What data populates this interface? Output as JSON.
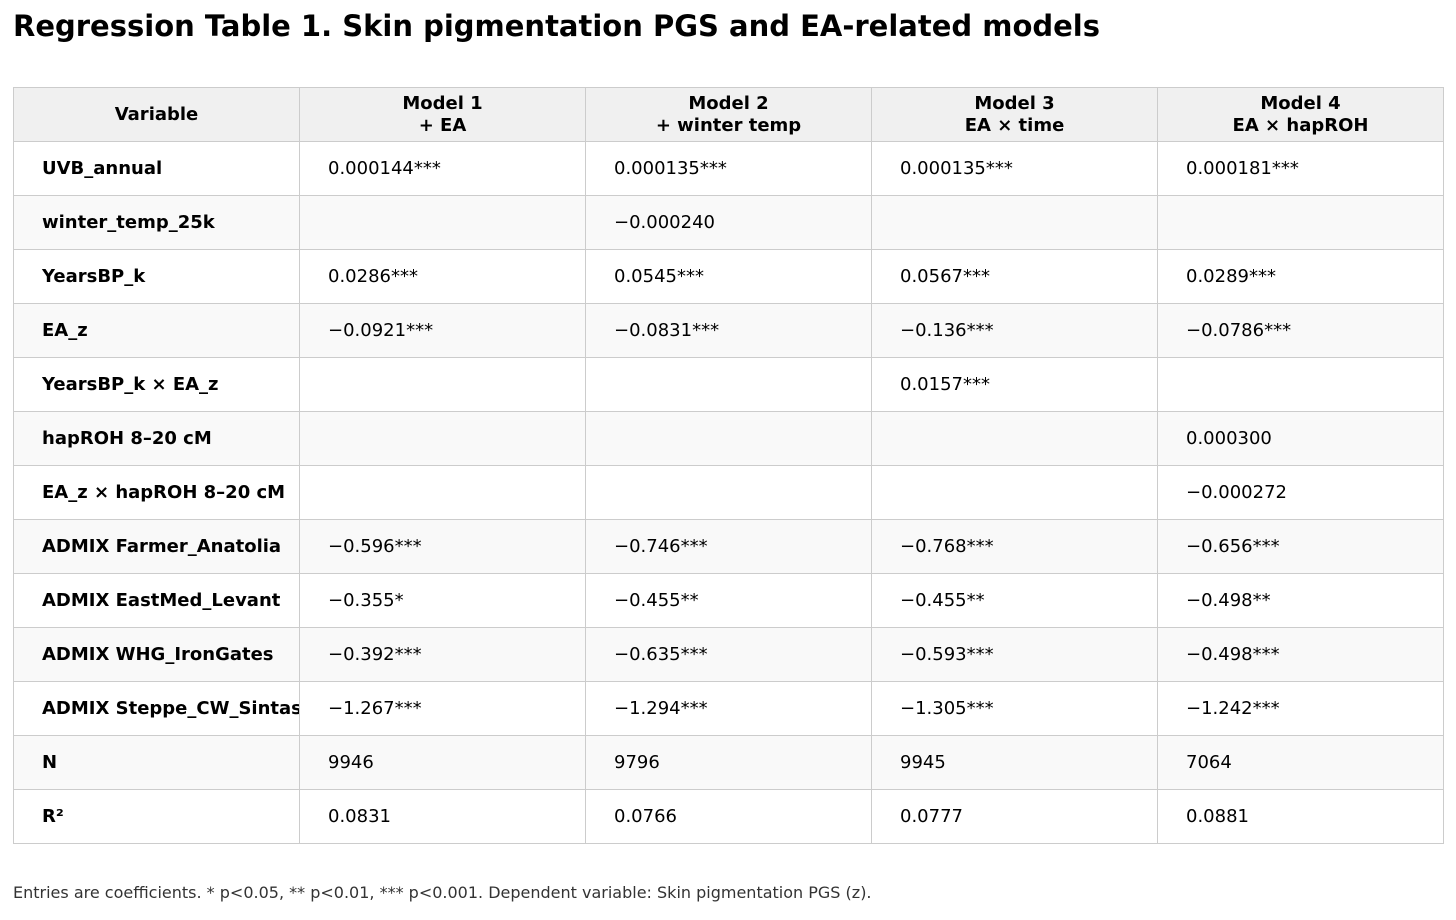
{
  "title": "Regression Table 1. Skin pigmentation PGS and EA-related models",
  "table": {
    "headers": [
      {
        "line1": "Variable",
        "line2": ""
      },
      {
        "line1": "Model 1",
        "line2": "+ EA"
      },
      {
        "line1": "Model 2",
        "line2": "+ winter temp"
      },
      {
        "line1": "Model 3",
        "line2": "EA × time"
      },
      {
        "line1": "Model 4",
        "line2": "EA × hapROH"
      }
    ],
    "rows": [
      {
        "variable": "UVB_annual",
        "m1": "0.000144***",
        "m2": "0.000135***",
        "m3": "0.000135***",
        "m4": "0.000181***"
      },
      {
        "variable": "winter_temp_25k",
        "m1": "",
        "m2": "−0.000240",
        "m3": "",
        "m4": ""
      },
      {
        "variable": "YearsBP_k",
        "m1": "0.0286***",
        "m2": "0.0545***",
        "m3": "0.0567***",
        "m4": "0.0289***"
      },
      {
        "variable": "EA_z",
        "m1": "−0.0921***",
        "m2": "−0.0831***",
        "m3": "−0.136***",
        "m4": "−0.0786***"
      },
      {
        "variable": "YearsBP_k × EA_z",
        "m1": "",
        "m2": "",
        "m3": "0.0157***",
        "m4": ""
      },
      {
        "variable": "hapROH 8–20 cM",
        "m1": "",
        "m2": "",
        "m3": "",
        "m4": "0.000300"
      },
      {
        "variable": "EA_z × hapROH 8–20 cM",
        "m1": "",
        "m2": "",
        "m3": "",
        "m4": "−0.000272"
      },
      {
        "variable": "ADMIX Farmer_Anatolia",
        "m1": "−0.596***",
        "m2": "−0.746***",
        "m3": "−0.768***",
        "m4": "−0.656***"
      },
      {
        "variable": "ADMIX EastMed_Levant",
        "m1": "−0.355*",
        "m2": "−0.455**",
        "m3": "−0.455**",
        "m4": "−0.498**"
      },
      {
        "variable": "ADMIX WHG_IronGates",
        "m1": "−0.392***",
        "m2": "−0.635***",
        "m3": "−0.593***",
        "m4": "−0.498***"
      },
      {
        "variable": "ADMIX Steppe_CW_Sintashta",
        "m1": "−1.267***",
        "m2": "−1.294***",
        "m3": "−1.305***",
        "m4": "−1.242***"
      },
      {
        "variable": "N",
        "m1": "9946",
        "m2": "9796",
        "m3": "9945",
        "m4": "7064"
      },
      {
        "variable": "R²",
        "m1": "0.0831",
        "m2": "0.0766",
        "m3": "0.0777",
        "m4": "0.0881"
      }
    ]
  },
  "note": "Entries are coefficients. * p<0.05, ** p<0.01, *** p<0.001. Dependent variable: Skin pigmentation PGS (z)."
}
